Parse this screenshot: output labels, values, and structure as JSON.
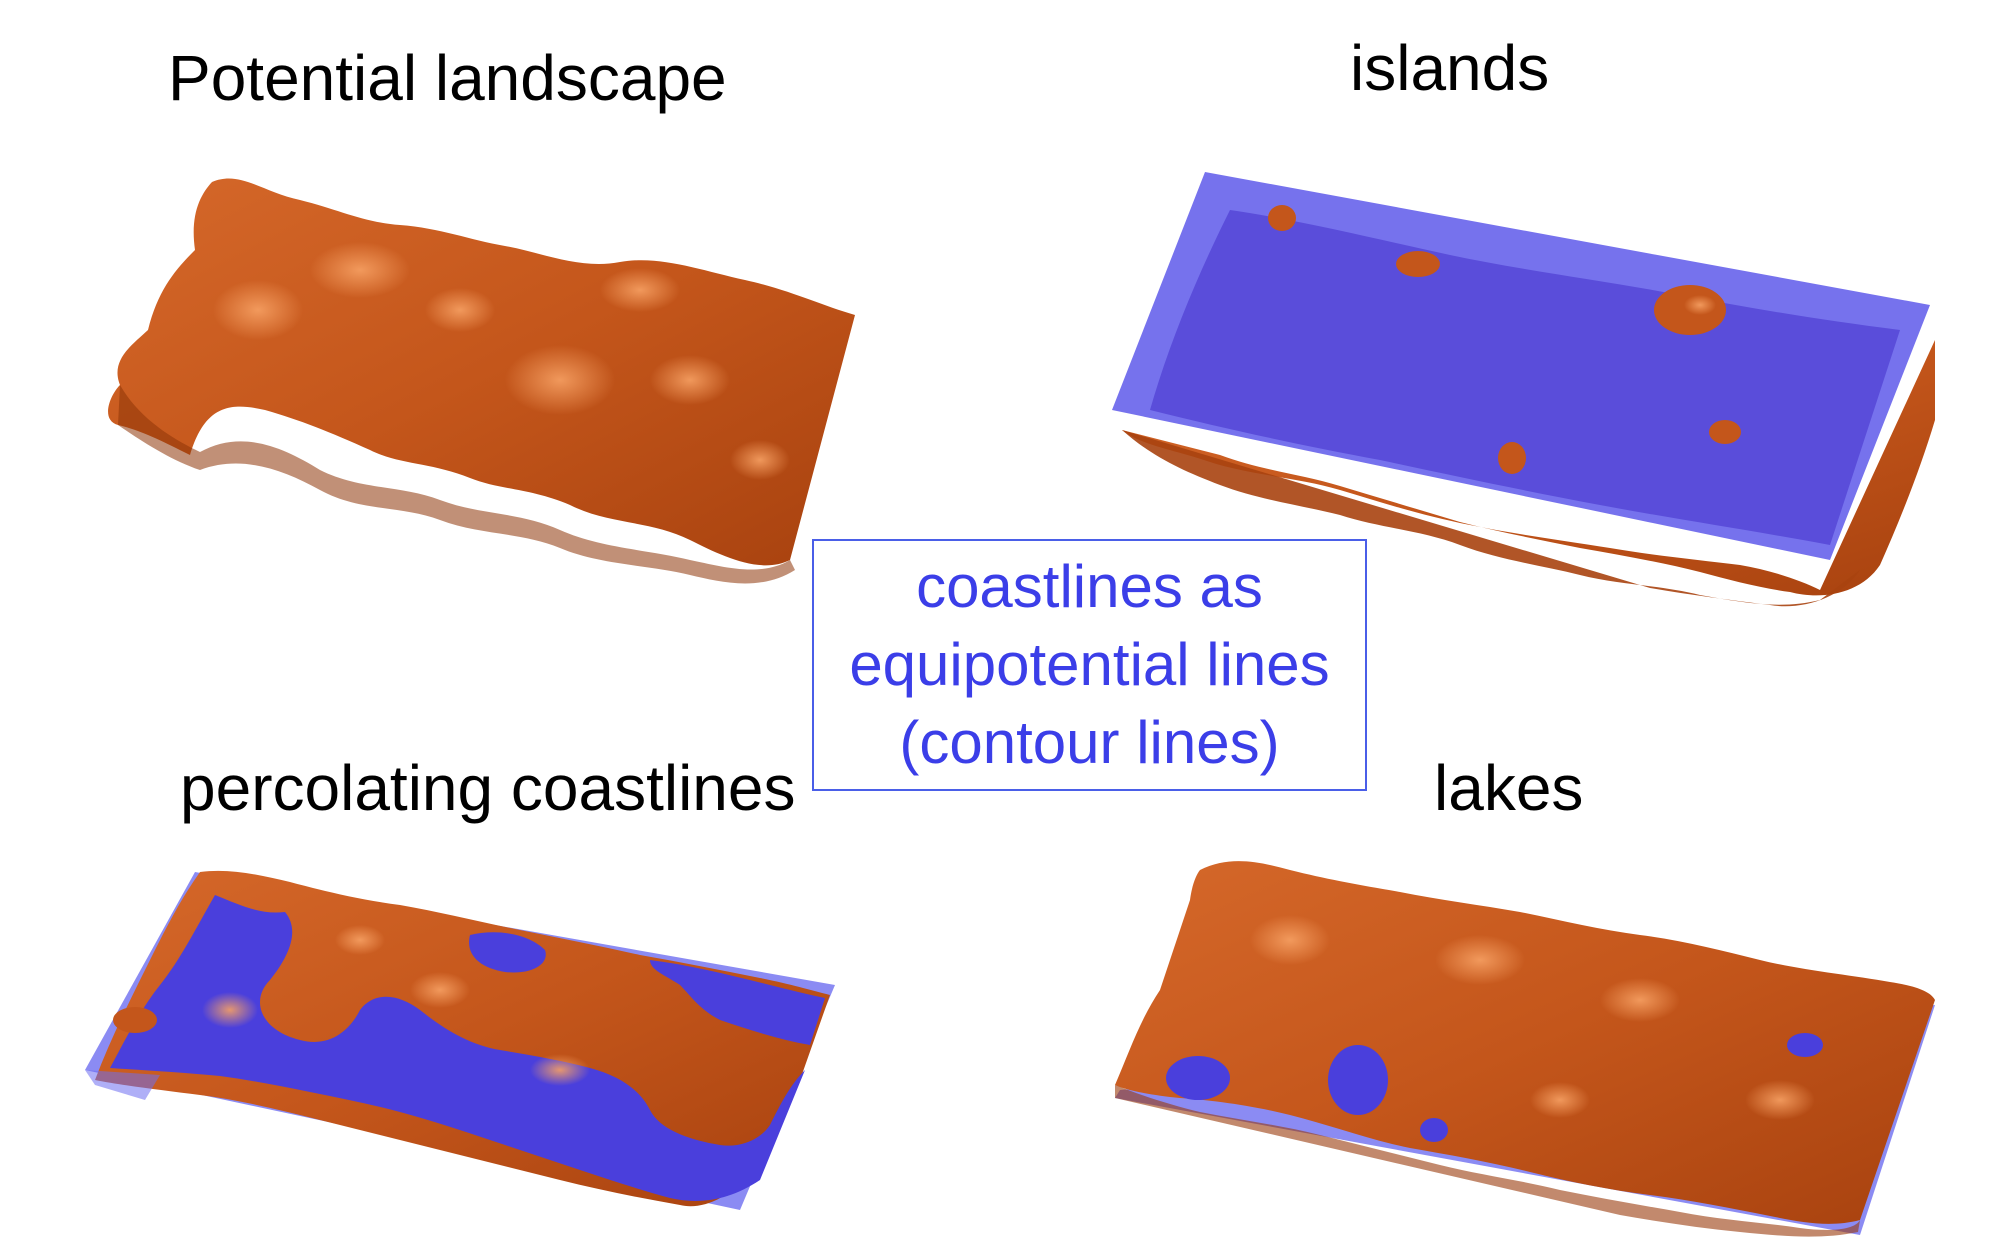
{
  "labels": {
    "potential": "Potential landscape",
    "islands": "islands",
    "percolating": "percolating coastlines",
    "lakes": "lakes"
  },
  "callout": {
    "line1": "coastlines as",
    "line2": "equipotential lines",
    "line3": "(contour lines)"
  },
  "colors": {
    "terrain": "#c4561b",
    "terrain_dark": "#8e3508",
    "terrain_light": "#f08a45",
    "water": "#4a3fdc",
    "water_plane": "#6e6ef0",
    "callout_text": "#3b3ee8",
    "callout_border": "#4a5ee8"
  }
}
